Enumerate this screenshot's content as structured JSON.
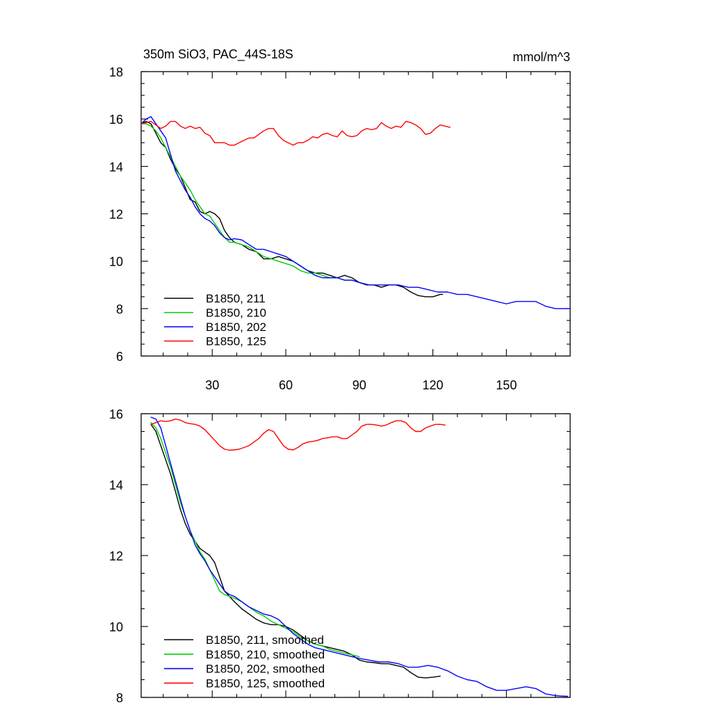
{
  "chart_data": [
    {
      "type": "line",
      "title": "350m SiO3, PAC_44S-18S",
      "units": "mmol/m^3",
      "xlim": [
        1,
        176
      ],
      "ylim": [
        6,
        18
      ],
      "yticks": [
        6,
        8,
        10,
        12,
        14,
        16,
        18
      ],
      "xticks": [
        30,
        60,
        90,
        120,
        150
      ],
      "xticklabels": [
        "30",
        "60",
        "90",
        "120",
        "150"
      ],
      "legend_position": "bottom-left",
      "series": [
        {
          "name": "B1850, 211",
          "color": "#000000",
          "x": [
            1,
            3,
            5,
            7,
            9,
            11,
            13,
            15,
            17,
            19,
            21,
            23,
            25,
            27,
            29,
            31,
            33,
            35,
            37,
            39,
            42,
            45,
            48,
            51,
            54,
            57,
            60,
            63,
            66,
            69,
            72,
            75,
            78,
            81,
            84,
            87,
            90,
            93,
            96,
            99,
            102,
            105,
            108,
            111,
            114,
            117,
            120,
            123,
            124
          ],
          "y": [
            15.8,
            15.9,
            15.8,
            15.4,
            15.0,
            14.8,
            14.3,
            13.9,
            13.6,
            13.1,
            12.6,
            12.5,
            12.1,
            12.0,
            12.1,
            12.0,
            11.8,
            11.3,
            11.0,
            10.8,
            10.7,
            10.5,
            10.4,
            10.1,
            10.1,
            10.2,
            10.1,
            10.0,
            9.8,
            9.6,
            9.5,
            9.5,
            9.4,
            9.3,
            9.4,
            9.3,
            9.1,
            9.0,
            9.0,
            8.9,
            9.0,
            9.0,
            8.9,
            8.7,
            8.55,
            8.5,
            8.5,
            8.6,
            8.6
          ]
        },
        {
          "name": "B1850, 210",
          "color": "#00cc00",
          "x": [
            1,
            3,
            5,
            7,
            9,
            11,
            13,
            15,
            17,
            19,
            21,
            23,
            25,
            27,
            29,
            31,
            33,
            35,
            37,
            39,
            42,
            45,
            48,
            51,
            54,
            57,
            60,
            63,
            66,
            69,
            72,
            75,
            78,
            81,
            84,
            87,
            90
          ],
          "y": [
            15.8,
            15.8,
            15.7,
            15.5,
            15.2,
            14.8,
            14.4,
            14.0,
            13.6,
            13.3,
            13.0,
            12.6,
            12.3,
            12.0,
            11.9,
            11.6,
            11.3,
            11.0,
            10.8,
            10.8,
            10.7,
            10.6,
            10.4,
            10.2,
            10.1,
            10.0,
            9.9,
            9.8,
            9.6,
            9.5,
            9.5,
            9.4,
            9.3,
            9.3,
            9.2,
            9.2,
            9.1
          ]
        },
        {
          "name": "B1850, 202",
          "color": "#0000ff",
          "x": [
            1,
            3,
            5,
            7,
            9,
            11,
            13,
            15,
            17,
            19,
            21,
            23,
            25,
            27,
            29,
            31,
            33,
            35,
            37,
            39,
            42,
            45,
            48,
            51,
            54,
            57,
            60,
            63,
            66,
            69,
            72,
            75,
            78,
            81,
            84,
            87,
            90,
            94,
            98,
            102,
            106,
            110,
            114,
            118,
            122,
            126,
            130,
            134,
            138,
            142,
            146,
            150,
            154,
            158,
            162,
            166,
            170,
            174,
            176
          ],
          "y": [
            15.8,
            16.0,
            16.1,
            15.8,
            15.5,
            15.2,
            14.5,
            13.8,
            13.4,
            13.0,
            12.7,
            12.3,
            12.0,
            11.8,
            11.7,
            11.5,
            11.2,
            11.0,
            10.9,
            10.95,
            10.9,
            10.7,
            10.5,
            10.5,
            10.4,
            10.3,
            10.2,
            10.0,
            9.8,
            9.6,
            9.4,
            9.3,
            9.3,
            9.3,
            9.2,
            9.2,
            9.1,
            9.0,
            9.0,
            9.0,
            9.0,
            8.9,
            8.9,
            8.8,
            8.7,
            8.7,
            8.6,
            8.6,
            8.5,
            8.4,
            8.3,
            8.2,
            8.3,
            8.3,
            8.3,
            8.1,
            8.0,
            8.0,
            8.0
          ]
        },
        {
          "name": "B1850, 125",
          "color": "#ff0000",
          "x": [
            1,
            3,
            5,
            7,
            9,
            11,
            13,
            15,
            17,
            19,
            21,
            23,
            25,
            27,
            29,
            31,
            33,
            35,
            37,
            39,
            41,
            43,
            45,
            47,
            49,
            51,
            53,
            55,
            57,
            59,
            61,
            63,
            65,
            67,
            69,
            71,
            73,
            75,
            77,
            79,
            81,
            83,
            85,
            87,
            89,
            91,
            93,
            95,
            97,
            99,
            101,
            103,
            105,
            107,
            109,
            111,
            113,
            115,
            117,
            119,
            121,
            123,
            125,
            127
          ],
          "y": [
            15.8,
            15.85,
            15.9,
            15.75,
            15.6,
            15.7,
            15.9,
            15.9,
            15.7,
            15.6,
            15.7,
            15.6,
            15.65,
            15.4,
            15.3,
            15.0,
            15.0,
            15.0,
            14.9,
            14.9,
            15.0,
            15.1,
            15.2,
            15.2,
            15.35,
            15.5,
            15.6,
            15.6,
            15.3,
            15.1,
            15.0,
            14.9,
            15.0,
            15.0,
            15.1,
            15.25,
            15.2,
            15.35,
            15.4,
            15.3,
            15.25,
            15.5,
            15.3,
            15.25,
            15.3,
            15.5,
            15.6,
            15.55,
            15.6,
            15.85,
            15.7,
            15.6,
            15.7,
            15.65,
            15.9,
            15.85,
            15.75,
            15.6,
            15.35,
            15.4,
            15.6,
            15.75,
            15.7,
            15.65
          ]
        }
      ]
    },
    {
      "type": "line",
      "xlim": [
        1,
        176
      ],
      "ylim": [
        8,
        16
      ],
      "yticks": [
        8,
        10,
        12,
        14,
        16
      ],
      "xticks": [
        30,
        60,
        90,
        120,
        150
      ],
      "legend_position": "bottom-left",
      "series": [
        {
          "name": "B1850, 211, smoothed",
          "color": "#000000",
          "x": [
            5,
            7,
            9,
            11,
            13,
            15,
            17,
            19,
            21,
            23,
            25,
            27,
            29,
            31,
            33,
            35,
            37,
            39,
            42,
            45,
            48,
            51,
            54,
            57,
            60,
            63,
            66,
            69,
            72,
            75,
            78,
            81,
            84,
            87,
            90,
            93,
            96,
            99,
            102,
            105,
            108,
            111,
            114,
            117,
            120,
            123
          ],
          "y": [
            15.7,
            15.5,
            15.1,
            14.7,
            14.3,
            13.8,
            13.3,
            12.9,
            12.6,
            12.4,
            12.2,
            12.1,
            12.0,
            11.8,
            11.4,
            11.0,
            10.85,
            10.7,
            10.5,
            10.35,
            10.2,
            10.1,
            10.05,
            10.05,
            10.0,
            9.9,
            9.75,
            9.6,
            9.5,
            9.45,
            9.4,
            9.35,
            9.3,
            9.2,
            9.05,
            9.0,
            8.98,
            8.95,
            8.95,
            8.9,
            8.85,
            8.7,
            8.57,
            8.55,
            8.57,
            8.6
          ]
        },
        {
          "name": "B1850, 210, smoothed",
          "color": "#00cc00",
          "x": [
            5,
            7,
            9,
            11,
            13,
            15,
            17,
            19,
            21,
            23,
            25,
            27,
            29,
            31,
            33,
            35,
            37,
            39,
            42,
            45,
            48,
            51,
            54,
            57,
            60,
            63,
            66,
            69,
            72,
            75,
            78,
            81,
            84,
            87,
            90
          ],
          "y": [
            15.75,
            15.6,
            15.3,
            14.9,
            14.5,
            14.0,
            13.5,
            13.1,
            12.7,
            12.4,
            12.1,
            11.9,
            11.6,
            11.3,
            11.0,
            10.9,
            10.85,
            10.8,
            10.7,
            10.55,
            10.4,
            10.3,
            10.15,
            10.05,
            9.95,
            9.85,
            9.7,
            9.6,
            9.5,
            9.45,
            9.35,
            9.3,
            9.25,
            9.2,
            9.15
          ]
        },
        {
          "name": "B1850, 202, smoothed",
          "color": "#0000ff",
          "x": [
            5,
            7,
            9,
            11,
            13,
            15,
            17,
            19,
            21,
            23,
            25,
            27,
            29,
            31,
            33,
            35,
            37,
            39,
            42,
            45,
            48,
            51,
            54,
            57,
            60,
            63,
            66,
            69,
            72,
            75,
            78,
            81,
            84,
            87,
            90,
            94,
            98,
            102,
            106,
            110,
            114,
            118,
            122,
            126,
            130,
            134,
            138,
            142,
            146,
            150,
            154,
            158,
            162,
            166,
            170,
            172,
            175
          ],
          "y": [
            15.9,
            15.85,
            15.6,
            15.1,
            14.6,
            14.1,
            13.6,
            13.1,
            12.7,
            12.3,
            12.05,
            11.85,
            11.6,
            11.4,
            11.2,
            11.0,
            10.9,
            10.85,
            10.7,
            10.55,
            10.45,
            10.35,
            10.3,
            10.2,
            10.0,
            9.8,
            9.65,
            9.5,
            9.4,
            9.35,
            9.3,
            9.25,
            9.2,
            9.15,
            9.1,
            9.05,
            9.0,
            9.0,
            8.95,
            8.85,
            8.85,
            8.9,
            8.85,
            8.75,
            8.6,
            8.5,
            8.45,
            8.3,
            8.2,
            8.2,
            8.25,
            8.3,
            8.25,
            8.1,
            8.05,
            8.04,
            8.03
          ]
        },
        {
          "name": "B1850, 125, smoothed",
          "color": "#ff0000",
          "x": [
            5,
            7,
            9,
            11,
            13,
            15,
            17,
            19,
            21,
            23,
            25,
            27,
            29,
            31,
            33,
            35,
            37,
            39,
            41,
            43,
            45,
            47,
            49,
            51,
            53,
            55,
            57,
            59,
            61,
            63,
            65,
            67,
            69,
            71,
            73,
            75,
            77,
            79,
            81,
            83,
            85,
            87,
            89,
            91,
            93,
            95,
            97,
            99,
            101,
            103,
            105,
            107,
            109,
            111,
            113,
            115,
            117,
            119,
            121,
            123,
            125
          ],
          "y": [
            15.7,
            15.75,
            15.8,
            15.78,
            15.8,
            15.85,
            15.82,
            15.75,
            15.72,
            15.7,
            15.65,
            15.55,
            15.4,
            15.25,
            15.1,
            15.0,
            14.97,
            14.98,
            15.0,
            15.05,
            15.1,
            15.2,
            15.3,
            15.45,
            15.55,
            15.5,
            15.3,
            15.1,
            15.0,
            14.98,
            15.05,
            15.15,
            15.2,
            15.22,
            15.25,
            15.3,
            15.32,
            15.35,
            15.35,
            15.3,
            15.3,
            15.4,
            15.5,
            15.65,
            15.7,
            15.7,
            15.68,
            15.65,
            15.68,
            15.75,
            15.8,
            15.8,
            15.75,
            15.6,
            15.5,
            15.5,
            15.6,
            15.65,
            15.7,
            15.7,
            15.68
          ]
        }
      ]
    }
  ]
}
